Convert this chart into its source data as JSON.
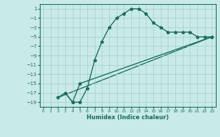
{
  "line1_x": [
    3,
    4,
    5,
    6,
    7,
    8,
    9,
    10,
    11,
    12,
    13,
    14,
    15,
    16,
    17,
    18,
    19,
    20,
    21,
    22,
    23
  ],
  "line1_y": [
    -17,
    -19,
    -19,
    -16,
    -10,
    -6,
    -3,
    -1,
    0,
    1,
    1,
    0,
    -2,
    -3,
    -4,
    -4,
    -4,
    -4,
    -5,
    -5,
    -5
  ],
  "line2_x": [
    2,
    3,
    4,
    5,
    23
  ],
  "line2_y": [
    -18,
    -17,
    -19,
    -15,
    -5
  ],
  "line3_x": [
    2,
    23
  ],
  "line3_y": [
    -18,
    -5
  ],
  "color": "#1a6b5a",
  "bg_color": "#c8eae8",
  "grid_color": "#9ecfcc",
  "xlabel": "Humidex (Indice chaleur)",
  "xlim": [
    -0.5,
    23.5
  ],
  "ylim": [
    -20,
    2
  ],
  "xticks": [
    0,
    1,
    2,
    3,
    4,
    5,
    6,
    7,
    8,
    9,
    10,
    11,
    12,
    13,
    14,
    15,
    16,
    17,
    18,
    19,
    20,
    21,
    22,
    23
  ],
  "yticks": [
    1,
    -1,
    -3,
    -5,
    -7,
    -9,
    -11,
    -13,
    -15,
    -17,
    -19
  ],
  "marker": "*",
  "markersize": 3.5,
  "linewidth": 1.0
}
